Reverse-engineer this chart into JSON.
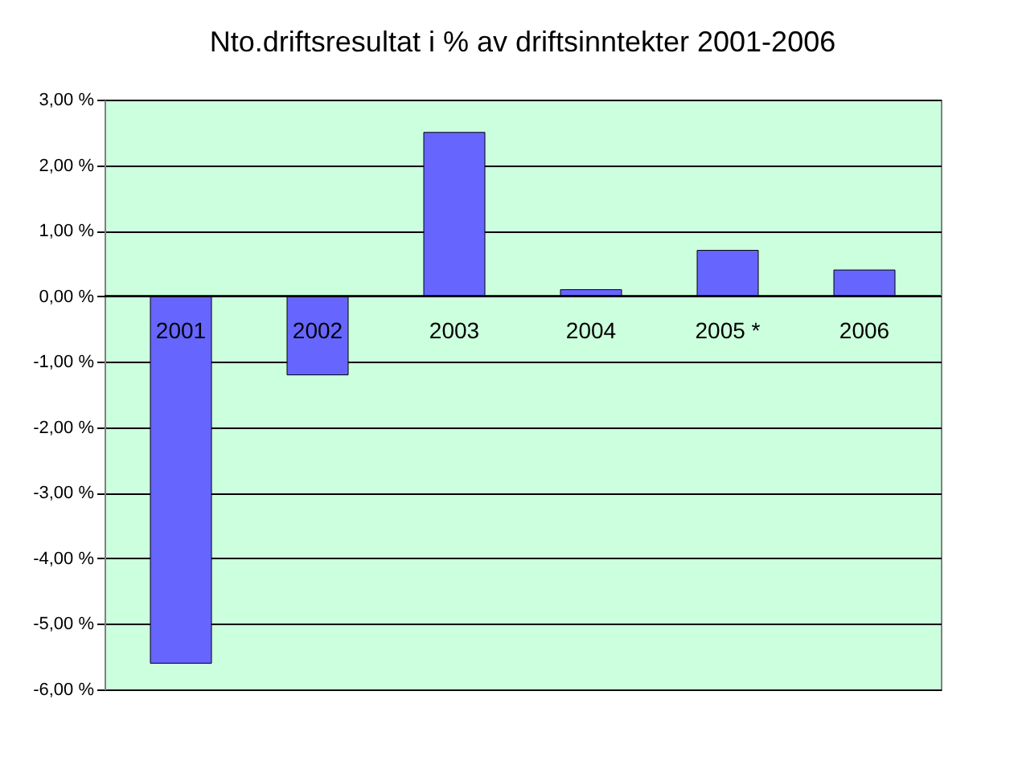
{
  "chart_data": {
    "type": "bar",
    "title": "Nto.driftsresultat i % av driftsinntekter 2001-2006",
    "categories": [
      "2001",
      "2002",
      "2003",
      "2004",
      "2005 *",
      "2006"
    ],
    "values": [
      -5.6,
      -1.2,
      2.5,
      0.1,
      0.7,
      0.4
    ],
    "color": "#6666ff",
    "ylim": [
      -6,
      3
    ],
    "yticks": [
      {
        "value": 3,
        "label": "3,00 %"
      },
      {
        "value": 2,
        "label": "2,00 %"
      },
      {
        "value": 1,
        "label": "1,00 %"
      },
      {
        "value": 0,
        "label": "0,00 %"
      },
      {
        "value": -1,
        "label": "-1,00 %"
      },
      {
        "value": -2,
        "label": "-2,00 %"
      },
      {
        "value": -3,
        "label": "-3,00 %"
      },
      {
        "value": -4,
        "label": "-4,00 %"
      },
      {
        "value": -5,
        "label": "-5,00 %"
      },
      {
        "value": -6,
        "label": "-6,00 %"
      }
    ],
    "grid": "y"
  }
}
